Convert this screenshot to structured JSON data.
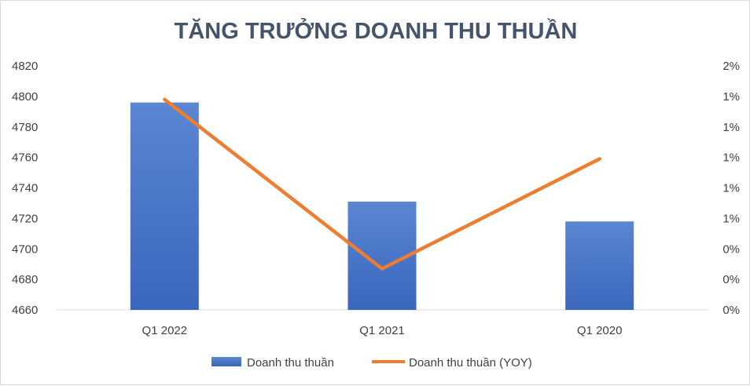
{
  "chart_data": {
    "type": "bar",
    "title": "TĂNG TRƯỞNG DOANH THU THUẦN",
    "categories": [
      "Q1 2022",
      "Q1 2021",
      "Q1 2020"
    ],
    "series": [
      {
        "name": "Doanh thu thuần",
        "type": "bar",
        "axis": "left",
        "color": "#4472c4",
        "values": [
          4796,
          4731,
          4718
        ]
      },
      {
        "name": "Doanh thu thuần (YOY)",
        "type": "line",
        "axis": "right",
        "color": "#ed7d31",
        "values": [
          1.38,
          0.27,
          0.99
        ]
      }
    ],
    "y_left": {
      "min": 4660,
      "max": 4820,
      "step": 20,
      "tick_labels": [
        "4660",
        "4680",
        "4700",
        "4720",
        "4740",
        "4760",
        "4780",
        "4800",
        "4820"
      ]
    },
    "y_right": {
      "min": 0,
      "max": 1.6,
      "tick_labels": [
        "0%",
        "0%",
        "0%",
        "1%",
        "1%",
        "1%",
        "1%",
        "1%",
        "2%"
      ]
    },
    "grid": false,
    "legend_position": "bottom"
  }
}
